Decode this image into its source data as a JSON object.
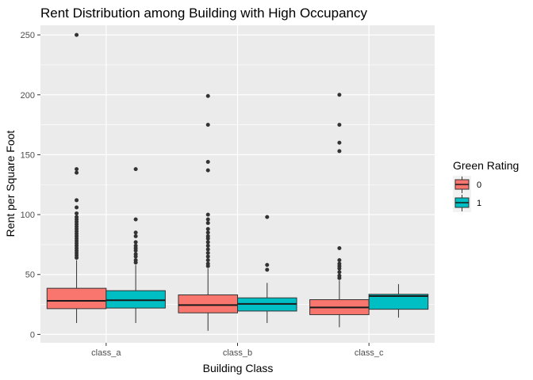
{
  "chart_data": {
    "type": "boxplot",
    "title": "Rent Distribution among Building with High Occupancy",
    "xlabel": "Building Class",
    "ylabel": "Rent per Square Foot",
    "ylim": [
      -7,
      258
    ],
    "yticks": [
      0,
      50,
      100,
      150,
      200,
      250
    ],
    "grid": true,
    "legend": {
      "title": "Green Rating",
      "position": "right"
    },
    "categories": [
      "class_a",
      "class_b",
      "class_c"
    ],
    "series": [
      {
        "name": "0",
        "color": "#F8766D",
        "boxes": [
          {
            "category": "class_a",
            "min": 9.5,
            "q1": 21.5,
            "median": 28,
            "q3": 38.5,
            "max": 62,
            "outliers": [
              250,
              138,
              135,
              112,
              106,
              101,
              98,
              96,
              94,
              92,
              90,
              88,
              86,
              84,
              82,
              80,
              78,
              76,
              74,
              72,
              70,
              68,
              66,
              64
            ]
          },
          {
            "category": "class_b",
            "min": 3,
            "q1": 18,
            "median": 24.5,
            "q3": 33,
            "max": 55,
            "outliers": [
              199,
              175,
              144,
              137,
              100,
              96,
              93,
              88,
              85,
              82,
              80,
              77,
              74,
              71,
              68,
              65,
              62,
              59,
              57
            ]
          },
          {
            "category": "class_c",
            "min": 6,
            "q1": 16.5,
            "median": 22.5,
            "q3": 29,
            "max": 45,
            "outliers": [
              200,
              175,
              160,
              153,
              72,
              62,
              59,
              57,
              55,
              52,
              49,
              47
            ]
          }
        ]
      },
      {
        "name": "1",
        "color": "#00BFC4",
        "boxes": [
          {
            "category": "class_a",
            "min": 9.5,
            "q1": 22,
            "median": 28.5,
            "q3": 36.5,
            "max": 58,
            "outliers": [
              138,
              96,
              85,
              82,
              77,
              74,
              72,
              70,
              67,
              65,
              62,
              60
            ]
          },
          {
            "category": "class_b",
            "min": 9.5,
            "q1": 19.5,
            "median": 25.5,
            "q3": 30.5,
            "max": 43,
            "outliers": [
              98,
              58,
              54
            ]
          },
          {
            "category": "class_c",
            "min": 14,
            "q1": 21,
            "median": 32,
            "q3": 33.5,
            "max": 42,
            "outliers": []
          }
        ]
      }
    ]
  }
}
